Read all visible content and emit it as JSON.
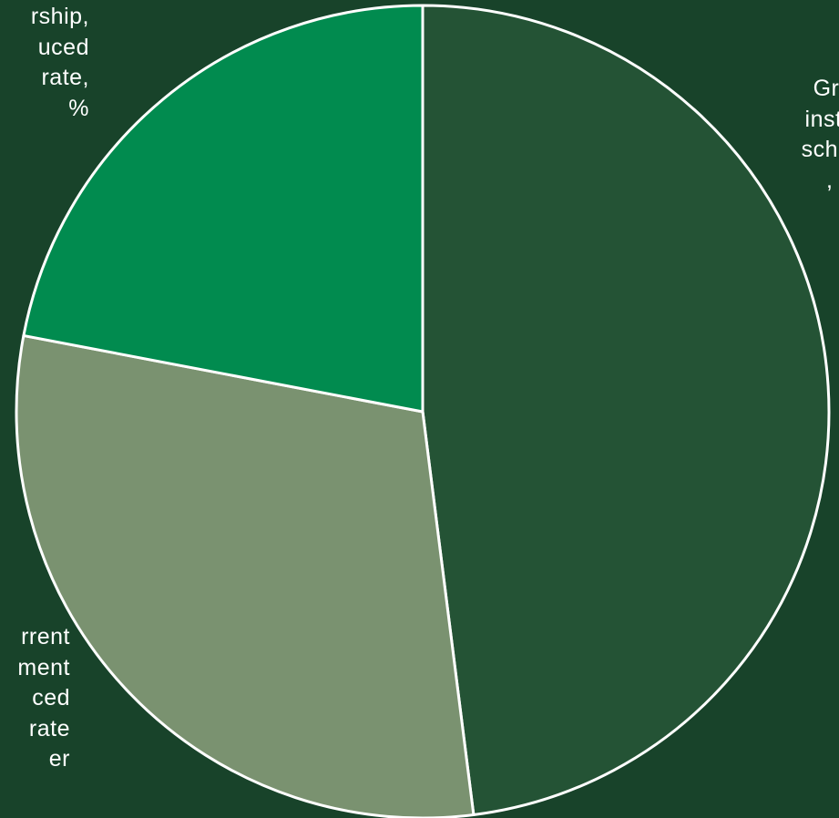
{
  "chart_data": {
    "type": "pie",
    "slices": [
      {
        "label": "Gr\ninsti\nscho\n",
        "value": 48.0,
        "color": "#245335"
      },
      {
        "label": "rrent\nment\nced\nrate\ner",
        "value": 30.0,
        "color": "#7a9270"
      },
      {
        "label": "rship,\nuced\nrate,\n%",
        "value": 22.0,
        "color": "#018b4f"
      }
    ],
    "start_angle_deg": 0,
    "direction": "clockwise",
    "edge_color": "#ffffff"
  },
  "labels": {
    "top_left": "rship,\nuced\n rate,\n%",
    "top_right": "Gr\ninsti\nscho\n ,",
    "bottom_left": "rrent\nment\nced\nrate\ner"
  }
}
